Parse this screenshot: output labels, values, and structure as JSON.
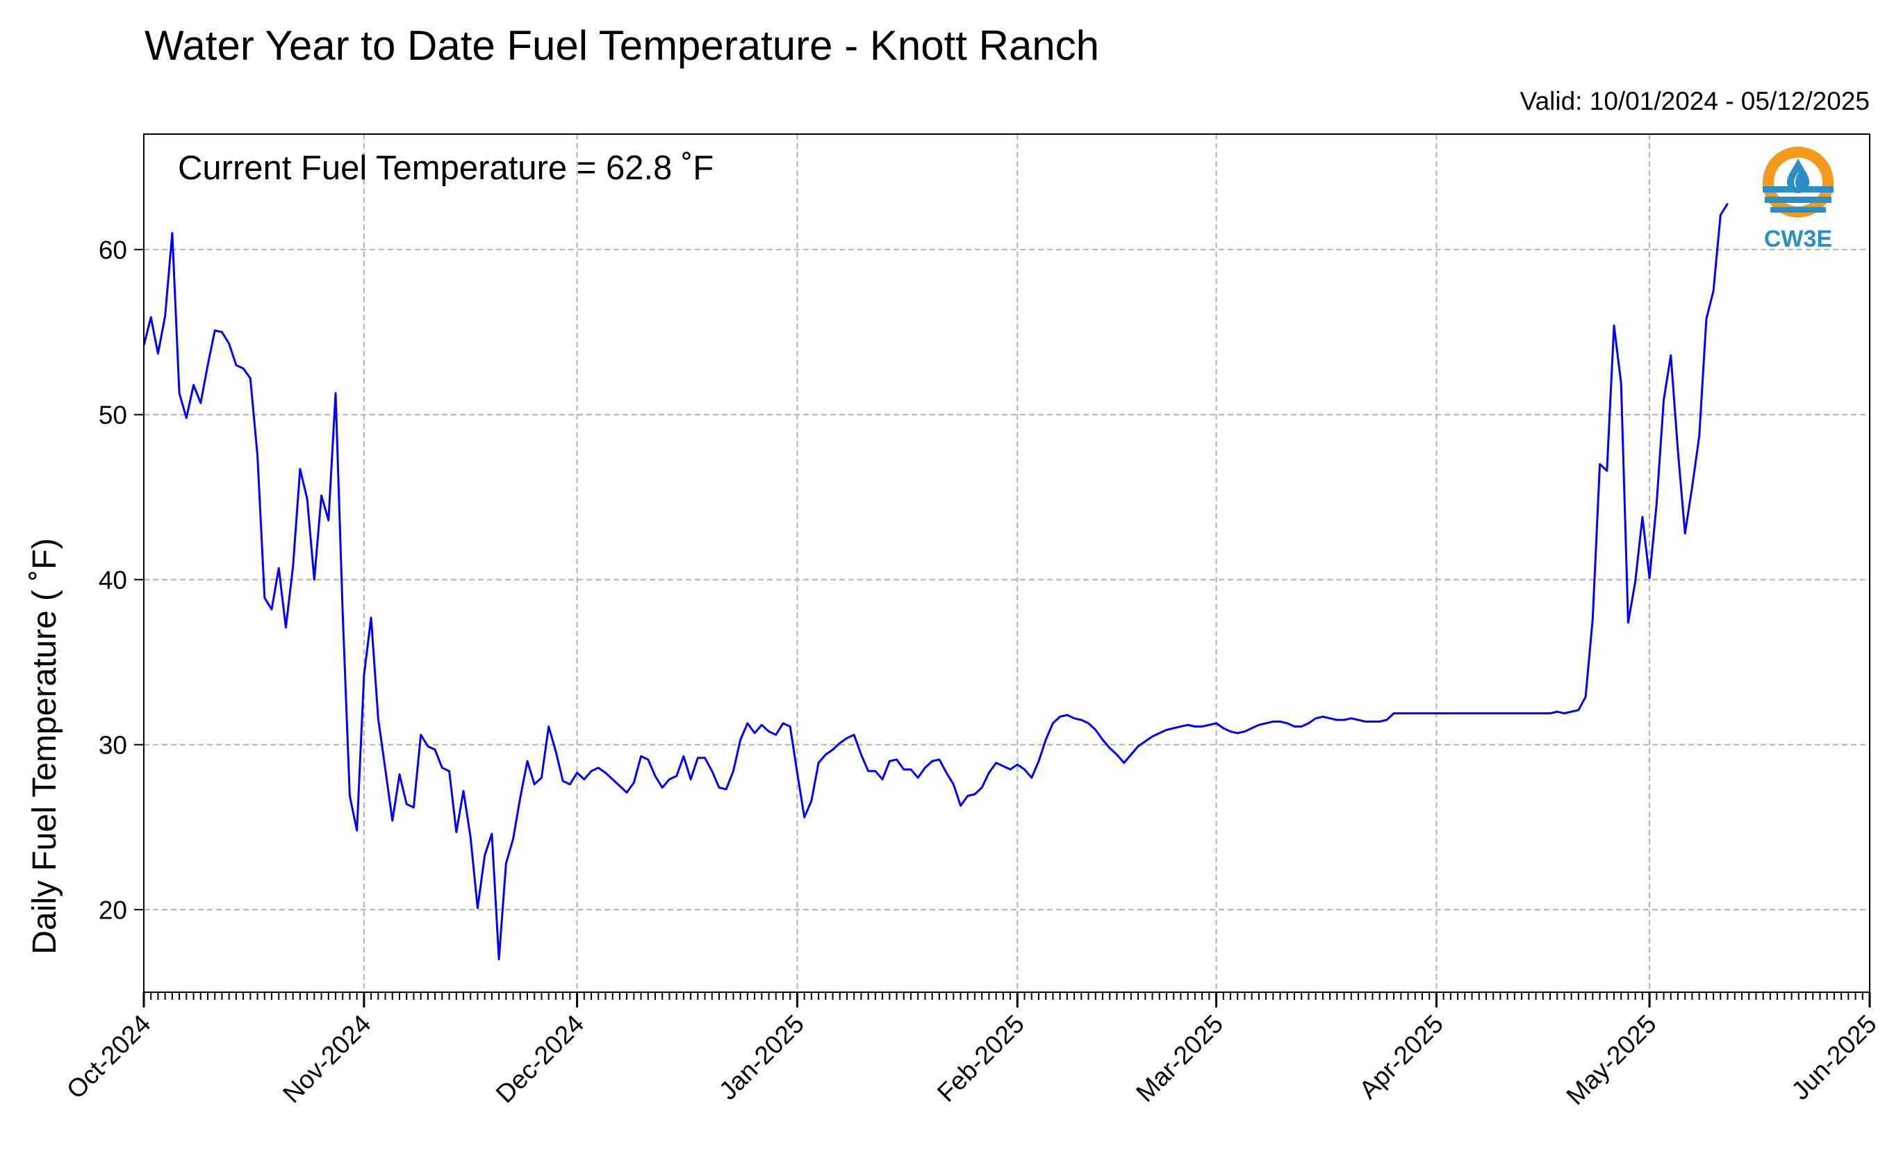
{
  "chart_data": {
    "type": "line",
    "title": "Water Year to Date Fuel Temperature - Knott Ranch",
    "subtitle": "Valid: 10/01/2024 - 05/12/2025",
    "ylabel": "Daily Fuel Temperature ( ˚F)",
    "xlabel": "",
    "annotation": "Current Fuel Temperature = 62.8  ˚F",
    "logo_text": "CW3E",
    "x_range": [
      "2024-10-01",
      "2025-06-01"
    ],
    "ylim": [
      15,
      67
    ],
    "y_ticks": [
      20,
      30,
      40,
      50,
      60
    ],
    "x_ticks": [
      {
        "date": "2024-10-01",
        "label": "Oct-2024"
      },
      {
        "date": "2024-11-01",
        "label": "Nov-2024"
      },
      {
        "date": "2024-12-01",
        "label": "Dec-2024"
      },
      {
        "date": "2025-01-01",
        "label": "Jan-2025"
      },
      {
        "date": "2025-02-01",
        "label": "Feb-2025"
      },
      {
        "date": "2025-03-01",
        "label": "Mar-2025"
      },
      {
        "date": "2025-04-01",
        "label": "Apr-2025"
      },
      {
        "date": "2025-05-01",
        "label": "May-2025"
      },
      {
        "date": "2025-06-01",
        "label": "Jun-2025"
      }
    ],
    "grid": true,
    "line_color": "#0000ff",
    "series": [
      {
        "start_date": "2024-10-01",
        "values": [
          54.2,
          55.9,
          53.7,
          56.0,
          61.0,
          51.3,
          49.8,
          51.8,
          50.7,
          53.0,
          55.1,
          55.0,
          54.3,
          53.0,
          52.8,
          52.2,
          47.5,
          38.9,
          38.2,
          40.7,
          37.1,
          40.8,
          46.7,
          44.9,
          40.0,
          45.1,
          43.6,
          51.3,
          38.0,
          26.9,
          24.8,
          34.2,
          37.7,
          31.6,
          28.5,
          25.4,
          28.2,
          26.4,
          26.2,
          30.6,
          29.9,
          29.7,
          28.6,
          28.4,
          24.7,
          27.2,
          24.4,
          20.1,
          23.3,
          24.6,
          17.0,
          22.8,
          24.3,
          26.8,
          29.0,
          27.6,
          28.0,
          31.1,
          29.6,
          27.8,
          27.6,
          28.3,
          27.9,
          28.4,
          28.6,
          28.3,
          27.9,
          27.5,
          27.1,
          27.7,
          29.3,
          29.1,
          28.1,
          27.4,
          27.9,
          28.1,
          29.3,
          27.9,
          29.2,
          29.2,
          28.4,
          27.4,
          27.3,
          28.4,
          30.3,
          31.3,
          30.7,
          31.2,
          30.8,
          30.6,
          31.3,
          31.1,
          28.3,
          25.6,
          26.6,
          28.9,
          29.4,
          29.7,
          30.1,
          30.4,
          30.6,
          29.4,
          28.4,
          28.4,
          27.9,
          29.0,
          29.1,
          28.5,
          28.5,
          28.0,
          28.6,
          29.0,
          29.1,
          28.3,
          27.6,
          26.3,
          26.9,
          27.0,
          27.4,
          28.3,
          28.9,
          28.7,
          28.5,
          28.8,
          28.5,
          28.0,
          29.0,
          30.3,
          31.3,
          31.7,
          31.8,
          31.6,
          31.5,
          31.3,
          30.9,
          30.3,
          29.8,
          29.4,
          28.9,
          29.4,
          29.9,
          30.2,
          30.5,
          30.7,
          30.9,
          31.0,
          31.1,
          31.2,
          31.1,
          31.1,
          31.2,
          31.3,
          31.0,
          30.8,
          30.7,
          30.8,
          31.0,
          31.2,
          31.3,
          31.4,
          31.4,
          31.3,
          31.1,
          31.1,
          31.3,
          31.6,
          31.7,
          31.6,
          31.5,
          31.5,
          31.6,
          31.5,
          31.4,
          31.4,
          31.4,
          31.5,
          31.9,
          31.9,
          31.9,
          31.9,
          31.9,
          31.9,
          31.9,
          31.9,
          31.9,
          31.9,
          31.9,
          31.9,
          31.9,
          31.9,
          31.9,
          31.9,
          31.9,
          31.9,
          31.9,
          31.9,
          31.9,
          31.9,
          31.9,
          32.0,
          31.9,
          32.0,
          32.1,
          32.9,
          37.6,
          47.0,
          46.6,
          55.4,
          51.9,
          37.4,
          39.9,
          43.8,
          40.1,
          44.6,
          50.9,
          53.6,
          47.8,
          42.8,
          45.6,
          48.7,
          55.8,
          57.5,
          62.1,
          62.8
        ]
      }
    ]
  }
}
